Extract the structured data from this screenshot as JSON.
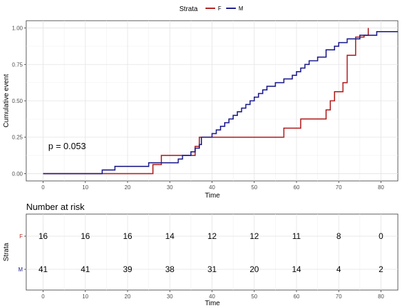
{
  "chart_data": [
    {
      "type": "line",
      "subtype": "step",
      "ylabel": "Cumulative event",
      "xlabel": "Time",
      "xlim": [
        -4,
        84
      ],
      "ylim": [
        -0.05,
        1.05
      ],
      "x_ticks": [
        0,
        10,
        20,
        30,
        40,
        50,
        60,
        70,
        80
      ],
      "y_ticks": [
        0.0,
        0.25,
        0.5,
        0.75,
        1.0
      ],
      "y_tick_labels": [
        "0.00",
        "0.25",
        "0.50",
        "0.75",
        "1.00"
      ],
      "grid": true,
      "legend": {
        "title": "Strata",
        "placement": "top",
        "entries": [
          "F",
          "M"
        ]
      },
      "annotation": "p = 0.053",
      "series": [
        {
          "name": "F",
          "color": "#b22222",
          "points": [
            [
              0,
              0
            ],
            [
              26,
              0
            ],
            [
              26,
              0.0625
            ],
            [
              28,
              0.0625
            ],
            [
              28,
              0.125
            ],
            [
              36,
              0.125
            ],
            [
              36,
              0.1875
            ],
            [
              37,
              0.1875
            ],
            [
              37,
              0.25
            ],
            [
              57,
              0.25
            ],
            [
              57,
              0.3125
            ],
            [
              61,
              0.3125
            ],
            [
              61,
              0.375
            ],
            [
              67,
              0.375
            ],
            [
              67,
              0.4375
            ],
            [
              68,
              0.4375
            ],
            [
              68,
              0.5
            ],
            [
              69,
              0.5
            ],
            [
              69,
              0.5625
            ],
            [
              71,
              0.5625
            ],
            [
              71,
              0.625
            ],
            [
              72,
              0.625
            ],
            [
              72,
              0.8125
            ],
            [
              74,
              0.8125
            ],
            [
              74,
              0.9375
            ],
            [
              76,
              0.9375
            ],
            [
              76,
              0.95
            ],
            [
              77,
              0.95
            ],
            [
              77,
              1.0
            ]
          ]
        },
        {
          "name": "M",
          "color": "#1f1f8f",
          "points": [
            [
              0,
              0
            ],
            [
              14,
              0
            ],
            [
              14,
              0.025
            ],
            [
              17,
              0.025
            ],
            [
              17,
              0.05
            ],
            [
              25,
              0.05
            ],
            [
              25,
              0.075
            ],
            [
              32,
              0.075
            ],
            [
              32,
              0.1
            ],
            [
              33,
              0.1
            ],
            [
              33,
              0.125
            ],
            [
              35,
              0.125
            ],
            [
              35,
              0.15
            ],
            [
              36,
              0.15
            ],
            [
              36,
              0.175
            ],
            [
              37,
              0.175
            ],
            [
              37,
              0.2
            ],
            [
              37.5,
              0.2
            ],
            [
              37.5,
              0.25
            ],
            [
              40,
              0.25
            ],
            [
              40,
              0.275
            ],
            [
              41,
              0.275
            ],
            [
              41,
              0.3
            ],
            [
              42,
              0.3
            ],
            [
              42,
              0.325
            ],
            [
              43,
              0.325
            ],
            [
              43,
              0.35
            ],
            [
              44,
              0.35
            ],
            [
              44,
              0.375
            ],
            [
              45,
              0.375
            ],
            [
              45,
              0.4
            ],
            [
              46,
              0.4
            ],
            [
              46,
              0.425
            ],
            [
              47,
              0.425
            ],
            [
              47,
              0.45
            ],
            [
              48,
              0.45
            ],
            [
              48,
              0.475
            ],
            [
              49,
              0.475
            ],
            [
              49,
              0.5
            ],
            [
              50,
              0.5
            ],
            [
              50,
              0.525
            ],
            [
              51,
              0.525
            ],
            [
              51,
              0.55
            ],
            [
              52,
              0.55
            ],
            [
              52,
              0.575
            ],
            [
              53,
              0.575
            ],
            [
              53,
              0.6
            ],
            [
              55,
              0.6
            ],
            [
              55,
              0.625
            ],
            [
              57,
              0.625
            ],
            [
              57,
              0.65
            ],
            [
              59,
              0.65
            ],
            [
              59,
              0.675
            ],
            [
              60,
              0.675
            ],
            [
              60,
              0.7
            ],
            [
              61,
              0.7
            ],
            [
              61,
              0.725
            ],
            [
              62,
              0.725
            ],
            [
              62,
              0.75
            ],
            [
              63,
              0.75
            ],
            [
              63,
              0.775
            ],
            [
              65,
              0.775
            ],
            [
              65,
              0.8
            ],
            [
              67,
              0.8
            ],
            [
              67,
              0.85
            ],
            [
              69,
              0.85
            ],
            [
              69,
              0.875
            ],
            [
              70,
              0.875
            ],
            [
              70,
              0.9
            ],
            [
              72,
              0.9
            ],
            [
              72,
              0.925
            ],
            [
              75,
              0.925
            ],
            [
              75,
              0.95
            ],
            [
              79,
              0.95
            ],
            [
              79,
              0.975
            ],
            [
              84,
              0.975
            ]
          ]
        }
      ]
    },
    {
      "type": "table",
      "title": "Number at risk",
      "ylabel": "Strata",
      "xlabel": "Time",
      "xlim": [
        -4,
        84
      ],
      "x_ticks": [
        0,
        10,
        20,
        30,
        40,
        50,
        60,
        70,
        80
      ],
      "grid": true,
      "rows": [
        {
          "name": "F",
          "color": "#b22222",
          "values": [
            "16",
            "16",
            "16",
            "14",
            "12",
            "12",
            "11",
            "8",
            "0"
          ]
        },
        {
          "name": "M",
          "color": "#1f1f8f",
          "values": [
            "41",
            "41",
            "39",
            "38",
            "31",
            "20",
            "14",
            "4",
            "2"
          ]
        }
      ]
    }
  ]
}
